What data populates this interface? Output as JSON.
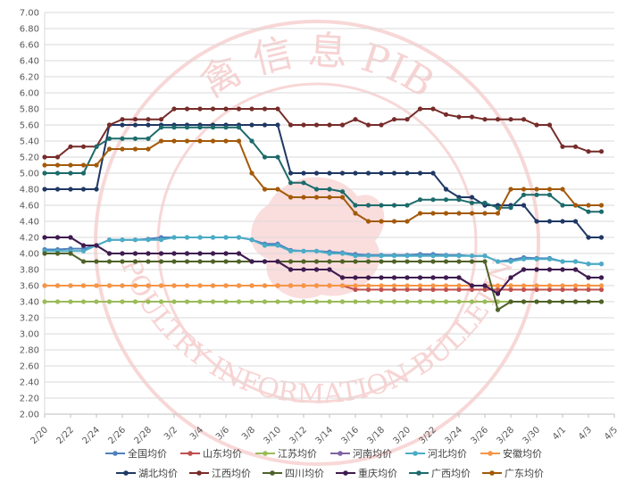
{
  "chart_data": {
    "type": "line",
    "title": "",
    "xlabel": "",
    "ylabel": "",
    "ylim": [
      2.0,
      7.0
    ],
    "y_ticks": [
      "2.00",
      "2.20",
      "2.40",
      "2.60",
      "2.80",
      "3.00",
      "3.20",
      "3.40",
      "3.60",
      "3.80",
      "4.00",
      "4.20",
      "4.40",
      "4.60",
      "4.80",
      "5.00",
      "5.20",
      "5.40",
      "5.60",
      "5.80",
      "6.00",
      "6.20",
      "6.40",
      "6.60",
      "6.80",
      "7.00"
    ],
    "x": [
      "2/20",
      "2/21",
      "2/22",
      "2/23",
      "2/24",
      "2/25",
      "2/26",
      "2/27",
      "2/28",
      "3/1",
      "3/2",
      "3/3",
      "3/4",
      "3/5",
      "3/6",
      "3/7",
      "3/8",
      "3/9",
      "3/10",
      "3/11",
      "3/12",
      "3/13",
      "3/14",
      "3/15",
      "3/16",
      "3/17",
      "3/18",
      "3/19",
      "3/20",
      "3/21",
      "3/22",
      "3/23",
      "3/24",
      "3/25",
      "3/26",
      "3/27",
      "3/28",
      "3/29",
      "3/30",
      "3/31",
      "4/1",
      "4/2",
      "4/3",
      "4/4",
      "4/5"
    ],
    "x_tick_labels": [
      "2/20",
      "2/22",
      "2/24",
      "2/26",
      "2/28",
      "3/2",
      "3/4",
      "3/6",
      "3/8",
      "3/10",
      "3/12",
      "3/14",
      "3/16",
      "3/18",
      "3/20",
      "3/22",
      "3/24",
      "3/26",
      "3/28",
      "3/30",
      "4/1",
      "4/3",
      "4/5"
    ],
    "grid": true,
    "legend_position": "bottom",
    "series": [
      {
        "name": "全国均价",
        "color": "#4f81bd",
        "values": [
          4.05,
          4.05,
          4.06,
          4.06,
          4.1,
          4.17,
          4.17,
          4.17,
          4.18,
          4.2,
          4.2,
          4.2,
          4.2,
          4.2,
          4.2,
          4.2,
          4.17,
          4.12,
          4.12,
          4.04,
          4.03,
          4.03,
          4.02,
          4.01,
          3.99,
          3.98,
          3.98,
          3.98,
          3.98,
          3.99,
          3.99,
          3.98,
          3.98,
          3.97,
          3.97,
          3.9,
          3.92,
          3.95,
          3.94,
          3.94,
          3.9,
          3.9,
          3.87,
          3.87,
          null
        ]
      },
      {
        "name": "山东均价",
        "color": "#c0504d",
        "values": [
          3.6,
          3.6,
          3.6,
          3.6,
          3.6,
          3.6,
          3.6,
          3.6,
          3.6,
          3.6,
          3.6,
          3.6,
          3.6,
          3.6,
          3.6,
          3.6,
          3.6,
          3.6,
          3.6,
          3.6,
          3.6,
          3.6,
          3.6,
          3.6,
          3.55,
          3.55,
          3.55,
          3.55,
          3.55,
          3.55,
          3.55,
          3.55,
          3.55,
          3.55,
          3.55,
          3.55,
          3.55,
          3.55,
          3.55,
          3.55,
          3.55,
          3.55,
          3.55,
          3.55,
          null
        ]
      },
      {
        "name": "江苏均价",
        "color": "#9bbb59",
        "values": [
          3.4,
          3.4,
          3.4,
          3.4,
          3.4,
          3.4,
          3.4,
          3.4,
          3.4,
          3.4,
          3.4,
          3.4,
          3.4,
          3.4,
          3.4,
          3.4,
          3.4,
          3.4,
          3.4,
          3.4,
          3.4,
          3.4,
          3.4,
          3.4,
          3.4,
          3.4,
          3.4,
          3.4,
          3.4,
          3.4,
          3.4,
          3.4,
          3.4,
          3.4,
          3.4,
          3.4,
          3.4,
          3.4,
          3.4,
          3.4,
          3.4,
          3.4,
          3.4,
          3.4,
          null
        ]
      },
      {
        "name": "河南均价",
        "color": "#8064a2",
        "values": [
          4.2,
          4.2,
          4.2,
          4.1,
          4.1,
          4.0,
          4.0,
          4.0,
          4.0,
          4.0,
          4.0,
          4.0,
          4.0,
          4.0,
          4.0,
          4.0,
          3.9,
          3.9,
          3.9,
          3.8,
          3.8,
          3.8,
          3.8,
          3.7,
          3.7,
          3.7,
          3.7,
          3.7,
          3.7,
          3.7,
          3.7,
          3.7,
          3.7,
          3.6,
          3.6,
          3.5,
          3.7,
          3.8,
          3.8,
          3.8,
          3.8,
          3.8,
          3.7,
          3.7,
          null
        ]
      },
      {
        "name": "河北均价",
        "color": "#4bacc6",
        "values": [
          4.03,
          4.03,
          4.03,
          4.03,
          4.1,
          4.17,
          4.17,
          4.17,
          4.17,
          4.17,
          4.2,
          4.2,
          4.2,
          4.2,
          4.2,
          4.2,
          4.17,
          4.1,
          4.1,
          4.03,
          4.03,
          4.03,
          4.0,
          4.0,
          3.97,
          3.97,
          3.97,
          3.97,
          3.97,
          3.97,
          3.97,
          3.97,
          3.97,
          3.97,
          3.97,
          3.9,
          3.9,
          3.93,
          3.93,
          3.93,
          3.9,
          3.9,
          3.87,
          3.87,
          null
        ]
      },
      {
        "name": "安徽均价",
        "color": "#f79646",
        "values": [
          3.6,
          3.6,
          3.6,
          3.6,
          3.6,
          3.6,
          3.6,
          3.6,
          3.6,
          3.6,
          3.6,
          3.6,
          3.6,
          3.6,
          3.6,
          3.6,
          3.6,
          3.6,
          3.6,
          3.6,
          3.6,
          3.6,
          3.6,
          3.6,
          3.6,
          3.6,
          3.6,
          3.6,
          3.6,
          3.6,
          3.6,
          3.6,
          3.6,
          3.6,
          3.6,
          3.6,
          3.6,
          3.6,
          3.6,
          3.6,
          3.6,
          3.6,
          3.6,
          3.6,
          null
        ]
      },
      {
        "name": "湖北均价",
        "color": "#1f3864",
        "values": [
          4.8,
          4.8,
          4.8,
          4.8,
          4.8,
          5.6,
          5.6,
          5.6,
          5.6,
          5.6,
          5.6,
          5.6,
          5.6,
          5.6,
          5.6,
          5.6,
          5.6,
          5.6,
          5.6,
          5.0,
          5.0,
          5.0,
          5.0,
          5.0,
          5.0,
          5.0,
          5.0,
          5.0,
          5.0,
          5.0,
          5.0,
          4.8,
          4.7,
          4.7,
          4.6,
          4.6,
          4.6,
          4.6,
          4.4,
          4.4,
          4.4,
          4.4,
          4.2,
          4.2,
          null
        ]
      },
      {
        "name": "江西均价",
        "color": "#772c2a",
        "values": [
          5.2,
          5.2,
          5.33,
          5.33,
          5.33,
          5.6,
          5.67,
          5.67,
          5.67,
          5.67,
          5.8,
          5.8,
          5.8,
          5.8,
          5.8,
          5.8,
          5.8,
          5.8,
          5.8,
          5.6,
          5.6,
          5.6,
          5.6,
          5.6,
          5.67,
          5.6,
          5.6,
          5.67,
          5.67,
          5.8,
          5.8,
          5.73,
          5.7,
          5.7,
          5.67,
          5.67,
          5.67,
          5.67,
          5.6,
          5.6,
          5.33,
          5.33,
          5.27,
          5.27,
          null
        ]
      },
      {
        "name": "四川均价",
        "color": "#4f6228",
        "values": [
          4.0,
          4.0,
          4.0,
          3.9,
          3.9,
          3.9,
          3.9,
          3.9,
          3.9,
          3.9,
          3.9,
          3.9,
          3.9,
          3.9,
          3.9,
          3.9,
          3.9,
          3.9,
          3.9,
          3.9,
          3.9,
          3.9,
          3.9,
          3.9,
          3.9,
          3.9,
          3.9,
          3.9,
          3.9,
          3.9,
          3.9,
          3.9,
          3.9,
          3.9,
          3.9,
          3.3,
          3.4,
          3.4,
          3.4,
          3.4,
          3.4,
          3.4,
          3.4,
          3.4,
          null
        ]
      },
      {
        "name": "重庆均价",
        "color": "#3f1c4f",
        "values": [
          4.2,
          4.2,
          4.2,
          4.1,
          4.1,
          4.0,
          4.0,
          4.0,
          4.0,
          4.0,
          4.0,
          4.0,
          4.0,
          4.0,
          4.0,
          4.0,
          3.9,
          3.9,
          3.9,
          3.8,
          3.8,
          3.8,
          3.8,
          3.7,
          3.7,
          3.7,
          3.7,
          3.7,
          3.7,
          3.7,
          3.7,
          3.7,
          3.7,
          3.6,
          3.6,
          3.5,
          3.7,
          3.8,
          3.8,
          3.8,
          3.8,
          3.8,
          3.7,
          3.7,
          null
        ]
      },
      {
        "name": "广西均价",
        "color": "#1d6b6b",
        "values": [
          5.0,
          5.0,
          5.0,
          5.0,
          5.33,
          5.43,
          5.43,
          5.43,
          5.43,
          5.57,
          5.57,
          5.57,
          5.57,
          5.57,
          5.57,
          5.57,
          5.4,
          5.2,
          5.2,
          4.88,
          4.88,
          4.8,
          4.8,
          4.77,
          4.6,
          4.6,
          4.6,
          4.6,
          4.6,
          4.67,
          4.67,
          4.67,
          4.67,
          4.63,
          4.63,
          4.57,
          4.57,
          4.73,
          4.73,
          4.73,
          4.6,
          4.6,
          4.52,
          4.52,
          null
        ]
      },
      {
        "name": "广东均价",
        "color": "#a35a0a",
        "values": [
          5.1,
          5.1,
          5.1,
          5.1,
          5.1,
          5.3,
          5.3,
          5.3,
          5.3,
          5.4,
          5.4,
          5.4,
          5.4,
          5.4,
          5.4,
          5.4,
          5.0,
          4.8,
          4.8,
          4.7,
          4.7,
          4.7,
          4.7,
          4.7,
          4.5,
          4.4,
          4.4,
          4.4,
          4.4,
          4.5,
          4.5,
          4.5,
          4.5,
          4.5,
          4.5,
          4.5,
          4.8,
          4.8,
          4.8,
          4.8,
          4.8,
          4.6,
          4.6,
          4.6,
          null
        ]
      }
    ]
  },
  "watermark": {
    "top_text": "禽 信 息 PIB",
    "bottom_text": "POULTRY INFORMATION BULLETIN",
    "color": "#f2b0b0"
  }
}
